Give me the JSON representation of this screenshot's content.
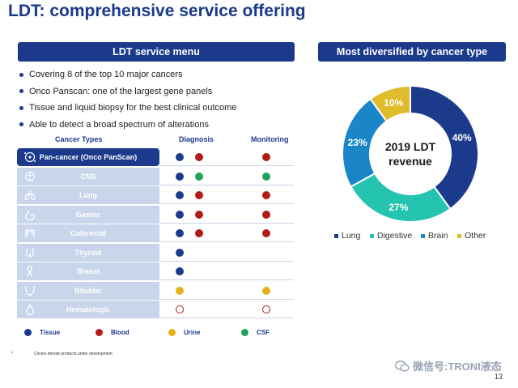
{
  "title": "LDT: comprehensive service offering",
  "left_panel": {
    "banner": "LDT service menu",
    "bullets": [
      "Covering 8 of the top 10 major cancers",
      "Onco Panscan: one of the largest gene panels",
      "Tissue and liquid biopsy for the best clinical outcome",
      "Able to detect a broad spectrum of alterations"
    ],
    "table": {
      "headers": {
        "cancer": "Cancer Types",
        "diagnosis": "Diagnosis",
        "monitoring": "Monitoring"
      },
      "rows": [
        {
          "label": "Pan-cancer (Onco PanScan)",
          "icon": "dna-cell-icon",
          "diagnosis": [
            "tissue",
            "blood"
          ],
          "monitoring": [
            "blood"
          ]
        },
        {
          "label": "CNS",
          "icon": "brain-icon",
          "diagnosis": [
            "tissue",
            "csf"
          ],
          "monitoring": [
            "csf"
          ]
        },
        {
          "label": "Lung",
          "icon": "lungs-icon",
          "diagnosis": [
            "tissue",
            "blood"
          ],
          "monitoring": [
            "blood"
          ]
        },
        {
          "label": "Gastric",
          "icon": "stomach-icon",
          "diagnosis": [
            "tissue",
            "blood"
          ],
          "monitoring": [
            "blood"
          ]
        },
        {
          "label": "Colorectal",
          "icon": "intestine-icon",
          "diagnosis": [
            "tissue",
            "blood"
          ],
          "monitoring": [
            "blood"
          ]
        },
        {
          "label": "Thyroid",
          "icon": "thyroid-icon",
          "diagnosis": [
            "tissue"
          ],
          "monitoring": []
        },
        {
          "label": "Breast",
          "icon": "ribbon-icon",
          "diagnosis": [
            "tissue"
          ],
          "monitoring": []
        },
        {
          "label": "Bladder",
          "icon": "bladder-icon",
          "diagnosis": [
            "urine"
          ],
          "monitoring": [
            "urine"
          ]
        },
        {
          "label": "Hematologic",
          "icon": "blood-drop-icon",
          "diagnosis": [
            "blood-dev"
          ],
          "monitoring": [
            "blood-dev"
          ]
        }
      ]
    },
    "legend": [
      {
        "key": "tissue",
        "label": "Tissue",
        "color": "#1b3a8c"
      },
      {
        "key": "blood",
        "label": "Blood",
        "color": "#b31b1b"
      },
      {
        "key": "urine",
        "label": "Urine",
        "color": "#e6b21a"
      },
      {
        "key": "csf",
        "label": "CSF",
        "color": "#1fa35a"
      }
    ],
    "footnote_marker": "*",
    "footnote": "Circles denote products under development"
  },
  "right_panel": {
    "banner": "Most diversified by cancer type"
  },
  "chart_data": {
    "type": "pie",
    "title": "2019 LDT revenue",
    "center_label_lines": [
      "2019 LDT",
      "revenue"
    ],
    "categories": [
      "Lung",
      "Digestive",
      "Brain",
      "Other"
    ],
    "values": [
      40,
      27,
      23,
      10
    ],
    "value_labels": [
      "40%",
      "27%",
      "23%",
      "10%"
    ],
    "colors": [
      "#1b3a8c",
      "#24c4b0",
      "#1a86c8",
      "#e0bb2b"
    ],
    "label_colors": [
      "#ffffff",
      "#ffffff",
      "#ffffff",
      "#ffffff"
    ],
    "legend_position": "bottom"
  },
  "watermark": "微信号:TRONI液态",
  "page_number": "13"
}
